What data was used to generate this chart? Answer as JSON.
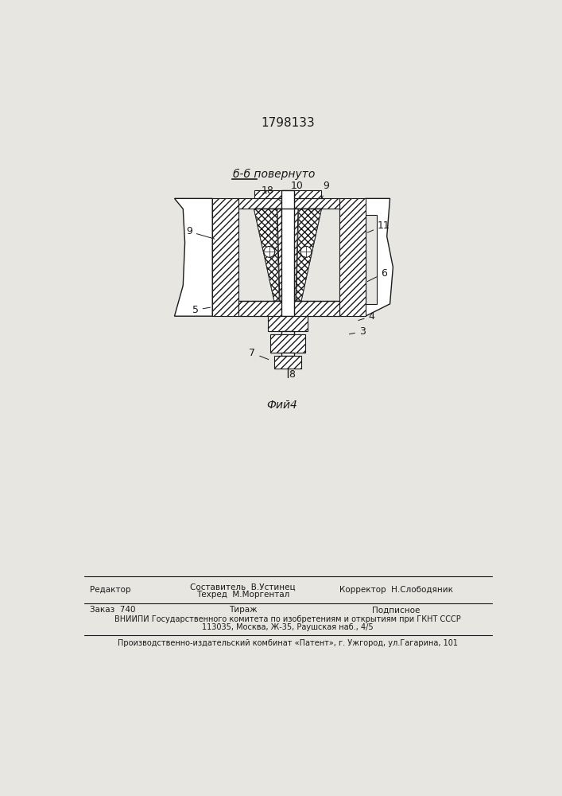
{
  "patent_number": "1798133",
  "figure_label": "Фий4",
  "section_label": "б-б повернуто",
  "bg_color": "#e8e6e1",
  "line_color": "#1a1a1a",
  "footer": {
    "editor": "Редактор",
    "composer": "Составитель  В.Устинец",
    "techred": "Техред  М.Моргентал",
    "corrector": "Корректор  Н.Слободяник",
    "order": "Заказ  740",
    "tirazh": "Тираж",
    "podpisnoe": "Подписное",
    "vnipi_line1": "ВНИИПИ Государственного комитета по изобретениям и открытиям при ГКНТ СССР",
    "vnipi_line2": "113035, Москва, Ж-35, Раушская наб., 4/5",
    "producer": "Производственно-издательский комбинат «Патент», г. Ужгород, ул.Гагарина, 101"
  }
}
